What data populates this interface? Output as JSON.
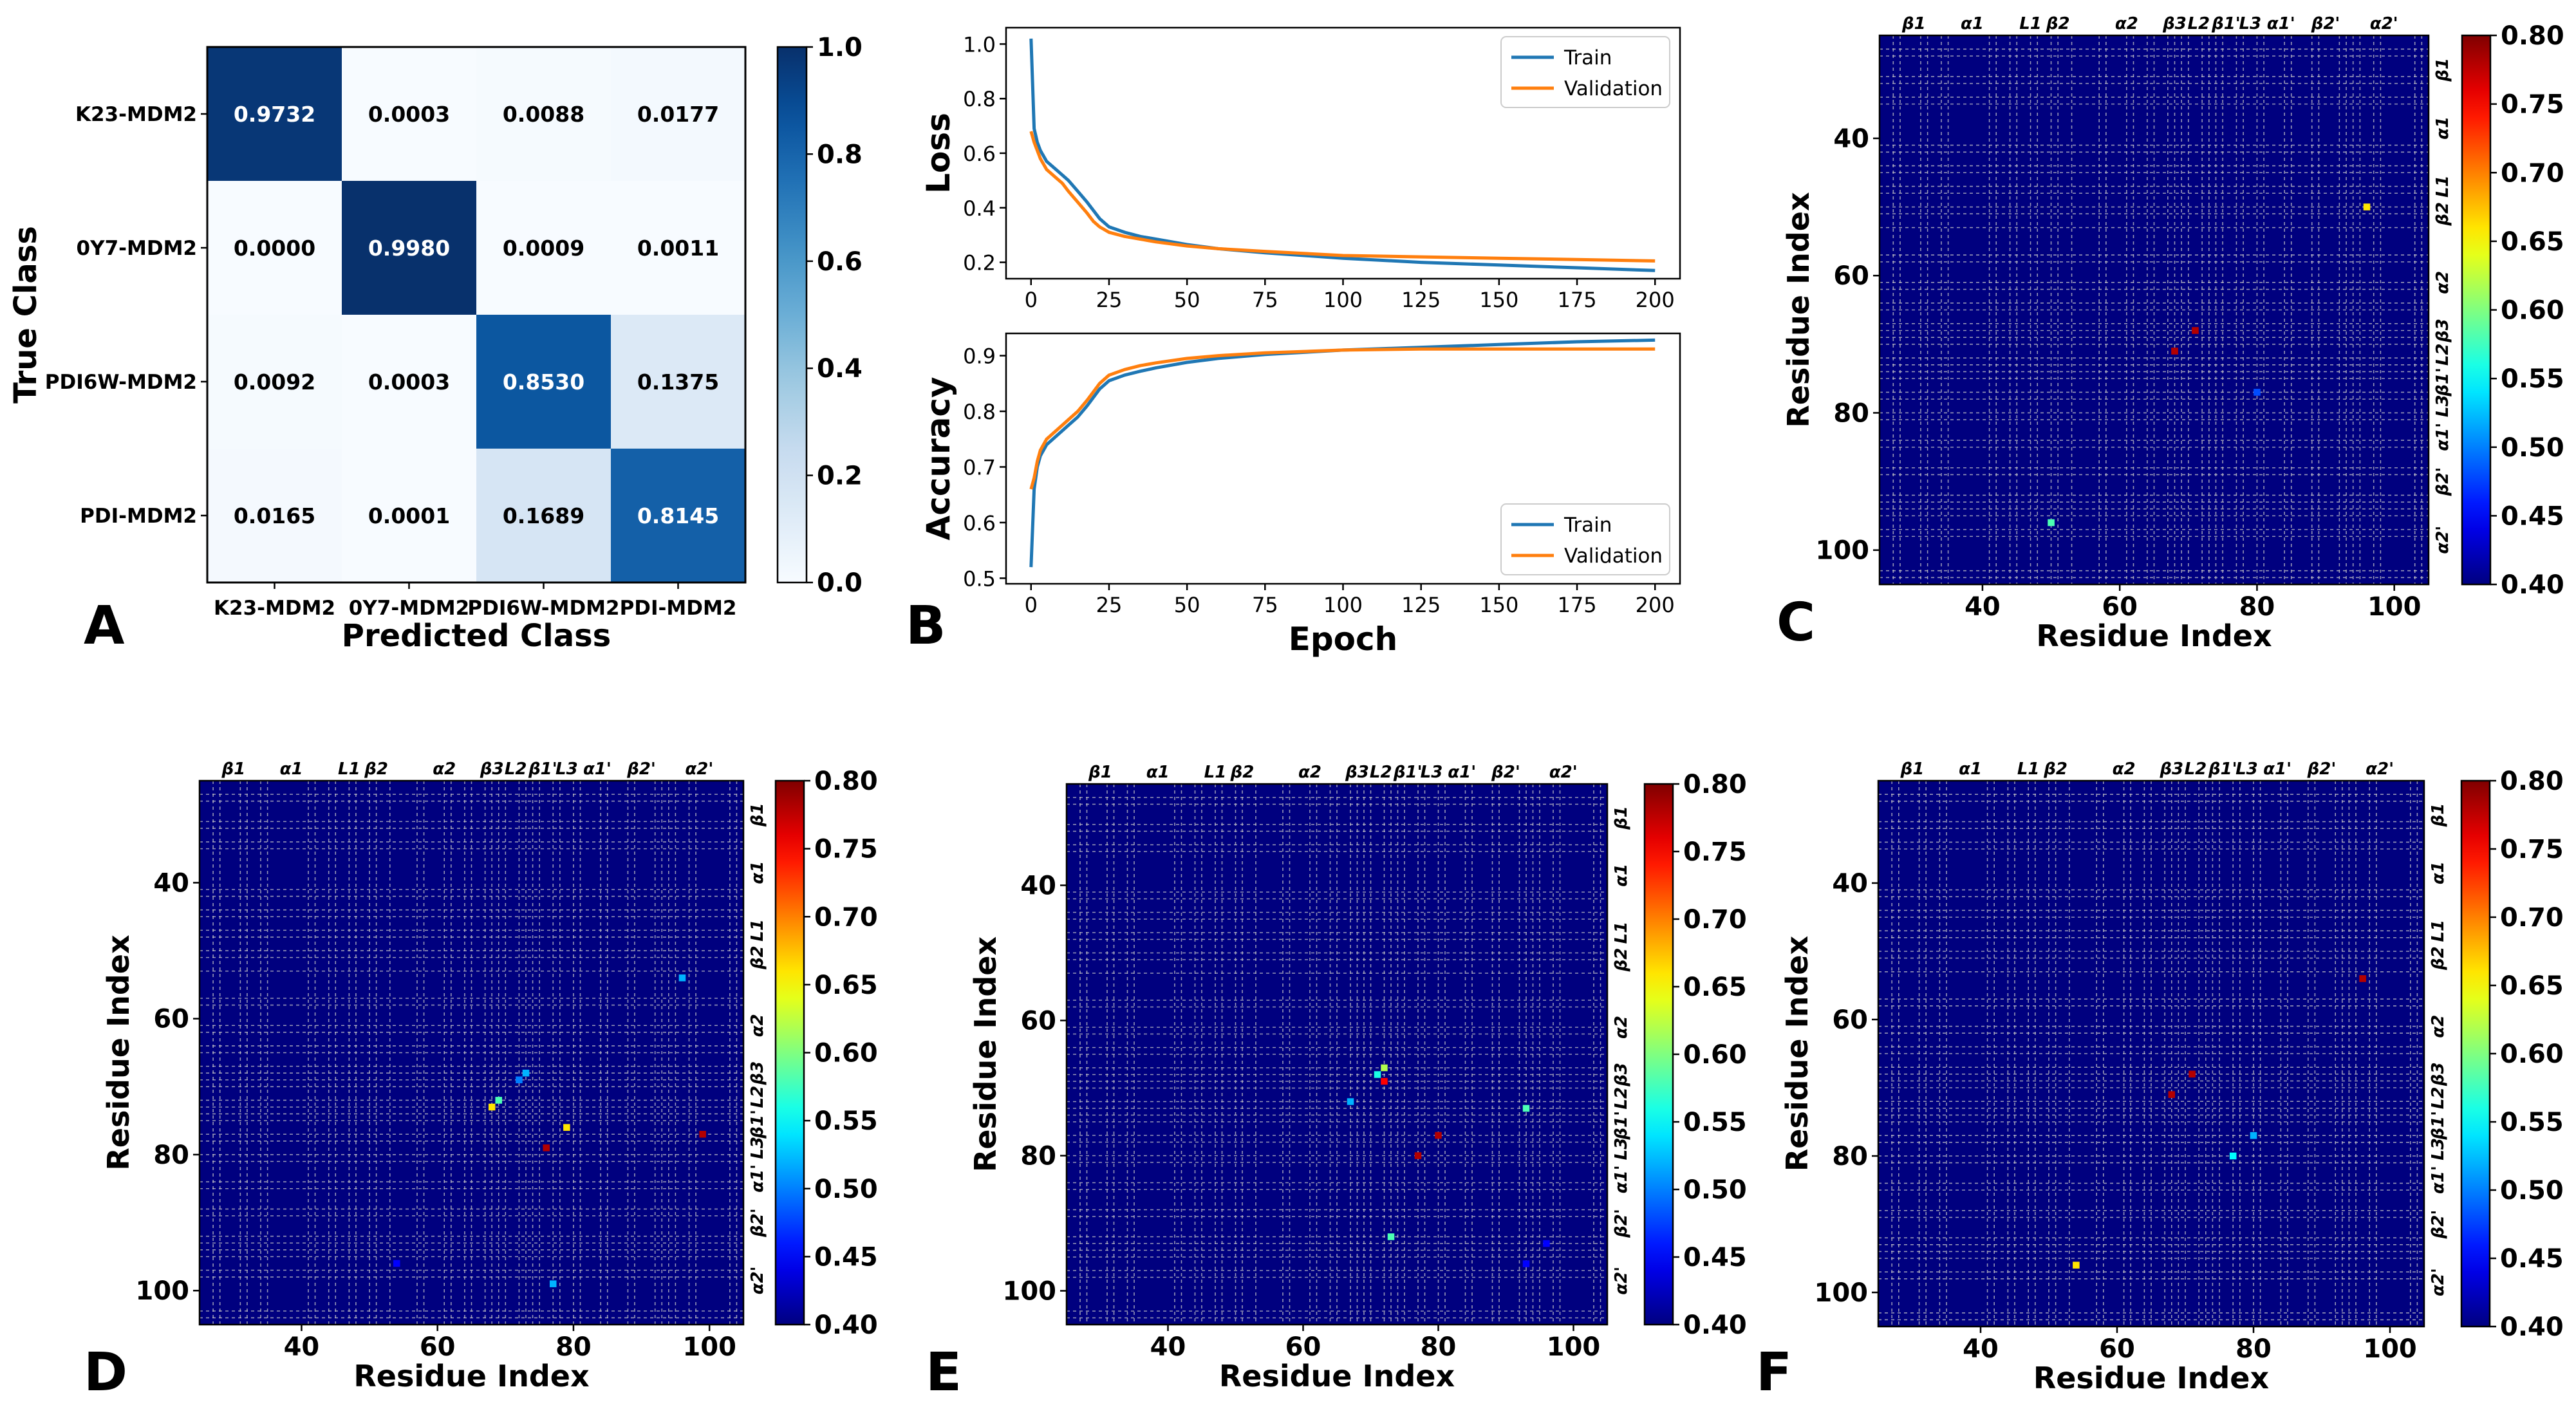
{
  "colors": {
    "train": "#1f77b4",
    "validation": "#ff7f0e",
    "heat_bg": "#00007f",
    "grid": "#c8c8c8",
    "axis": "#000000"
  },
  "chart_data": [
    {
      "panel": "A",
      "type": "heatmap",
      "title": "",
      "xlabel": "Predicted Class",
      "ylabel": "True Class",
      "categories": [
        "K23-MDM2",
        "0Y7-MDM2",
        "PDI6W-MDM2",
        "PDI-MDM2"
      ],
      "values": [
        [
          0.9732,
          0.0003,
          0.0088,
          0.0177
        ],
        [
          0.0,
          0.998,
          0.0009,
          0.0011
        ],
        [
          0.0092,
          0.0003,
          0.853,
          0.1375
        ],
        [
          0.0165,
          0.0001,
          0.1689,
          0.8145
        ]
      ],
      "cell_labels": [
        [
          "0.9732",
          "0.0003",
          "0.0088",
          "0.0177"
        ],
        [
          "0.0000",
          "0.9980",
          "0.0009",
          "0.0011"
        ],
        [
          "0.0092",
          "0.0003",
          "0.8530",
          "0.1375"
        ],
        [
          "0.0165",
          "0.0001",
          "0.1689",
          "0.8145"
        ]
      ],
      "colorbar": {
        "range": [
          0.0,
          1.0
        ],
        "ticks": [
          0.0,
          0.2,
          0.4,
          0.6,
          0.8,
          1.0
        ],
        "tick_labels": [
          "0.0",
          "0.2",
          "0.4",
          "0.6",
          "0.8",
          "1.0"
        ],
        "colormap": "Blues"
      }
    },
    {
      "panel": "B",
      "type": "line",
      "subplots": [
        {
          "ylabel": "Loss",
          "xlabel": "",
          "xlim": [
            -8,
            208
          ],
          "ylim": [
            0.14,
            1.06
          ],
          "yticks": [
            0.2,
            0.4,
            0.6,
            0.8,
            1.0
          ],
          "ytick_labels": [
            "0.2",
            "0.4",
            "0.6",
            "0.8",
            "1.0"
          ],
          "xticks": [
            0,
            25,
            50,
            75,
            100,
            125,
            150,
            175,
            200
          ],
          "xtick_labels": [
            "0",
            "25",
            "50",
            "75",
            "100",
            "125",
            "150",
            "175",
            "200"
          ],
          "legend": "top-right",
          "series": [
            {
              "name": "Train",
              "x": [
                0,
                1,
                2,
                3,
                5,
                8,
                10,
                12,
                15,
                18,
                20,
                22,
                25,
                30,
                35,
                40,
                50,
                60,
                75,
                100,
                125,
                150,
                175,
                200
              ],
              "values": [
                1.02,
                0.69,
                0.64,
                0.61,
                0.57,
                0.54,
                0.52,
                0.5,
                0.46,
                0.42,
                0.39,
                0.36,
                0.33,
                0.31,
                0.295,
                0.285,
                0.265,
                0.25,
                0.235,
                0.215,
                0.2,
                0.19,
                0.18,
                0.17
              ]
            },
            {
              "name": "Validation",
              "x": [
                0,
                1,
                2,
                3,
                5,
                8,
                10,
                12,
                15,
                18,
                20,
                22,
                25,
                30,
                35,
                40,
                50,
                60,
                75,
                100,
                125,
                150,
                175,
                200
              ],
              "values": [
                0.68,
                0.64,
                0.61,
                0.58,
                0.54,
                0.51,
                0.49,
                0.46,
                0.42,
                0.38,
                0.35,
                0.33,
                0.31,
                0.295,
                0.285,
                0.275,
                0.26,
                0.25,
                0.24,
                0.225,
                0.22,
                0.215,
                0.21,
                0.205
              ]
            }
          ]
        },
        {
          "ylabel": "Accuracy",
          "xlabel": "Epoch",
          "xlim": [
            -8,
            208
          ],
          "ylim": [
            0.49,
            0.94
          ],
          "yticks": [
            0.5,
            0.6,
            0.7,
            0.8,
            0.9
          ],
          "ytick_labels": [
            "0.5",
            "0.6",
            "0.7",
            "0.8",
            "0.9"
          ],
          "xticks": [
            0,
            25,
            50,
            75,
            100,
            125,
            150,
            175,
            200
          ],
          "xtick_labels": [
            "0",
            "25",
            "50",
            "75",
            "100",
            "125",
            "150",
            "175",
            "200"
          ],
          "legend": "bottom-right",
          "series": [
            {
              "name": "Train",
              "x": [
                0,
                1,
                2,
                3,
                5,
                8,
                10,
                12,
                15,
                18,
                20,
                22,
                25,
                30,
                35,
                40,
                50,
                60,
                75,
                100,
                125,
                150,
                175,
                200
              ],
              "values": [
                0.52,
                0.66,
                0.7,
                0.72,
                0.74,
                0.755,
                0.765,
                0.775,
                0.79,
                0.81,
                0.825,
                0.84,
                0.855,
                0.865,
                0.872,
                0.878,
                0.888,
                0.895,
                0.902,
                0.91,
                0.915,
                0.92,
                0.925,
                0.928
              ]
            },
            {
              "name": "Validation",
              "x": [
                0,
                1,
                2,
                3,
                5,
                8,
                10,
                12,
                15,
                18,
                20,
                22,
                25,
                30,
                35,
                40,
                50,
                60,
                75,
                100,
                125,
                150,
                175,
                200
              ],
              "values": [
                0.66,
                0.68,
                0.71,
                0.73,
                0.75,
                0.765,
                0.775,
                0.785,
                0.8,
                0.82,
                0.835,
                0.85,
                0.865,
                0.875,
                0.882,
                0.887,
                0.895,
                0.9,
                0.905,
                0.91,
                0.912,
                0.912,
                0.912,
                0.912
              ]
            }
          ]
        }
      ]
    },
    {
      "panel": "C",
      "type": "heatmap",
      "xlabel": "Residue Index",
      "ylabel": "Residue Index",
      "xlim": [
        25,
        105
      ],
      "ylim": [
        105,
        25
      ],
      "xticks": [
        40,
        60,
        80,
        100
      ],
      "yticks": [
        40,
        60,
        80,
        100
      ],
      "xtick_labels": [
        "40",
        "60",
        "80",
        "100"
      ],
      "ytick_labels": [
        "40",
        "60",
        "80",
        "100"
      ],
      "colorbar": {
        "range": [
          0.4,
          0.8
        ],
        "ticks": [
          0.4,
          0.45,
          0.5,
          0.55,
          0.6,
          0.65,
          0.7,
          0.75,
          0.8
        ],
        "tick_labels": [
          "0.40",
          "0.45",
          "0.50",
          "0.55",
          "0.60",
          "0.65",
          "0.70",
          "0.75",
          "0.80"
        ],
        "colormap": "jet"
      },
      "secondary_structure": [
        "β1",
        "α1",
        "L1",
        "β2",
        "α2",
        "β3",
        "L2",
        "β1'",
        "L3",
        "α1'",
        "β2'",
        "α2'"
      ],
      "points": [
        {
          "x": 96,
          "y": 50,
          "value": 0.66
        },
        {
          "x": 68,
          "y": 71,
          "value": 0.78
        },
        {
          "x": 71,
          "y": 68,
          "value": 0.78
        },
        {
          "x": 80,
          "y": 77,
          "value": 0.48
        },
        {
          "x": 50,
          "y": 96,
          "value": 0.58
        }
      ]
    },
    {
      "panel": "D",
      "type": "heatmap",
      "xlabel": "Residue Index",
      "ylabel": "Residue Index",
      "xlim": [
        25,
        105
      ],
      "ylim": [
        105,
        25
      ],
      "xticks": [
        40,
        60,
        80,
        100
      ],
      "yticks": [
        40,
        60,
        80,
        100
      ],
      "xtick_labels": [
        "40",
        "60",
        "80",
        "100"
      ],
      "ytick_labels": [
        "40",
        "60",
        "80",
        "100"
      ],
      "colorbar": {
        "range": [
          0.4,
          0.8
        ],
        "ticks": [
          0.4,
          0.45,
          0.5,
          0.55,
          0.6,
          0.65,
          0.7,
          0.75,
          0.8
        ],
        "tick_labels": [
          "0.40",
          "0.45",
          "0.50",
          "0.55",
          "0.60",
          "0.65",
          "0.70",
          "0.75",
          "0.80"
        ],
        "colormap": "jet"
      },
      "secondary_structure": [
        "β1",
        "α1",
        "L1",
        "β2",
        "α2",
        "β3",
        "L2",
        "β1'",
        "L3",
        "α1'",
        "β2'",
        "α2'"
      ],
      "points": [
        {
          "x": 96,
          "y": 54,
          "value": 0.52
        },
        {
          "x": 73,
          "y": 68,
          "value": 0.52
        },
        {
          "x": 72,
          "y": 69,
          "value": 0.5
        },
        {
          "x": 69,
          "y": 72,
          "value": 0.58
        },
        {
          "x": 68,
          "y": 73,
          "value": 0.66
        },
        {
          "x": 79,
          "y": 76,
          "value": 0.66
        },
        {
          "x": 76,
          "y": 79,
          "value": 0.78
        },
        {
          "x": 99,
          "y": 77,
          "value": 0.78
        },
        {
          "x": 77,
          "y": 99,
          "value": 0.52
        },
        {
          "x": 54,
          "y": 96,
          "value": 0.45
        }
      ]
    },
    {
      "panel": "E",
      "type": "heatmap",
      "xlabel": "Residue Index",
      "ylabel": "Residue Index",
      "xlim": [
        25,
        105
      ],
      "ylim": [
        105,
        25
      ],
      "xticks": [
        40,
        60,
        80,
        100
      ],
      "yticks": [
        40,
        60,
        80,
        100
      ],
      "xtick_labels": [
        "40",
        "60",
        "80",
        "100"
      ],
      "ytick_labels": [
        "40",
        "60",
        "80",
        "100"
      ],
      "colorbar": {
        "range": [
          0.4,
          0.8
        ],
        "ticks": [
          0.4,
          0.45,
          0.5,
          0.55,
          0.6,
          0.65,
          0.7,
          0.75,
          0.8
        ],
        "tick_labels": [
          "0.40",
          "0.45",
          "0.50",
          "0.55",
          "0.60",
          "0.65",
          "0.70",
          "0.75",
          "0.80"
        ],
        "colormap": "jet"
      },
      "secondary_structure": [
        "β1",
        "α1",
        "L1",
        "β2",
        "α2",
        "β3",
        "L2",
        "β1'",
        "L3",
        "α1'",
        "β2'",
        "α2'"
      ],
      "points": [
        {
          "x": 71,
          "y": 68,
          "value": 0.56
        },
        {
          "x": 72,
          "y": 67,
          "value": 0.62
        },
        {
          "x": 72,
          "y": 69,
          "value": 0.75
        },
        {
          "x": 67,
          "y": 72,
          "value": 0.52
        },
        {
          "x": 93,
          "y": 73,
          "value": 0.58
        },
        {
          "x": 80,
          "y": 77,
          "value": 0.78
        },
        {
          "x": 77,
          "y": 80,
          "value": 0.78
        },
        {
          "x": 73,
          "y": 92,
          "value": 0.58
        },
        {
          "x": 96,
          "y": 93,
          "value": 0.45
        },
        {
          "x": 93,
          "y": 96,
          "value": 0.45
        }
      ]
    },
    {
      "panel": "F",
      "type": "heatmap",
      "xlabel": "Residue Index",
      "ylabel": "Residue Index",
      "xlim": [
        25,
        105
      ],
      "ylim": [
        105,
        25
      ],
      "xticks": [
        40,
        60,
        80,
        100
      ],
      "yticks": [
        40,
        60,
        80,
        100
      ],
      "xtick_labels": [
        "40",
        "60",
        "80",
        "100"
      ],
      "ytick_labels": [
        "40",
        "60",
        "80",
        "100"
      ],
      "colorbar": {
        "range": [
          0.4,
          0.8
        ],
        "ticks": [
          0.4,
          0.45,
          0.5,
          0.55,
          0.6,
          0.65,
          0.7,
          0.75,
          0.8
        ],
        "tick_labels": [
          "0.40",
          "0.45",
          "0.50",
          "0.55",
          "0.60",
          "0.65",
          "0.70",
          "0.75",
          "0.80"
        ],
        "colormap": "jet"
      },
      "secondary_structure": [
        "β1",
        "α1",
        "L1",
        "β2",
        "α2",
        "β3",
        "L2",
        "β1'",
        "L3",
        "α1'",
        "β2'",
        "α2'"
      ],
      "points": [
        {
          "x": 96,
          "y": 54,
          "value": 0.78
        },
        {
          "x": 68,
          "y": 71,
          "value": 0.78
        },
        {
          "x": 71,
          "y": 68,
          "value": 0.78
        },
        {
          "x": 80,
          "y": 77,
          "value": 0.52
        },
        {
          "x": 77,
          "y": 80,
          "value": 0.55
        },
        {
          "x": 54,
          "y": 96,
          "value": 0.66
        }
      ]
    }
  ]
}
